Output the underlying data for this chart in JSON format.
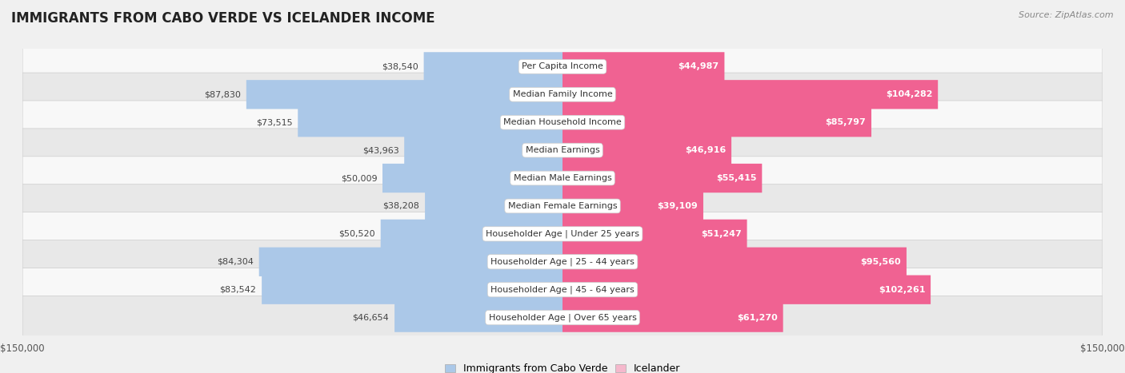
{
  "title": "IMMIGRANTS FROM CABO VERDE VS ICELANDER INCOME",
  "source": "Source: ZipAtlas.com",
  "categories": [
    "Per Capita Income",
    "Median Family Income",
    "Median Household Income",
    "Median Earnings",
    "Median Male Earnings",
    "Median Female Earnings",
    "Householder Age | Under 25 years",
    "Householder Age | 25 - 44 years",
    "Householder Age | 45 - 64 years",
    "Householder Age | Over 65 years"
  ],
  "cabo_verde": [
    38540,
    87830,
    73515,
    43963,
    50009,
    38208,
    50520,
    84304,
    83542,
    46654
  ],
  "icelander": [
    44987,
    104282,
    85797,
    46916,
    55415,
    39109,
    51247,
    95560,
    102261,
    61270
  ],
  "cabo_verde_color_light": "#abc8e8",
  "cabo_verde_color_dark": "#6baed6",
  "icelander_color_light": "#f5b8cc",
  "icelander_color_dark": "#f06292",
  "axis_max": 150000,
  "bg_color": "#f0f0f0",
  "row_bg_light": "#f8f8f8",
  "row_bg_dark": "#e8e8e8",
  "legend_cabo": "Immigrants from Cabo Verde",
  "legend_icelander": "Icelander",
  "label_fontsize": 8.0,
  "cat_fontsize": 8.0,
  "title_fontsize": 12,
  "source_fontsize": 8
}
